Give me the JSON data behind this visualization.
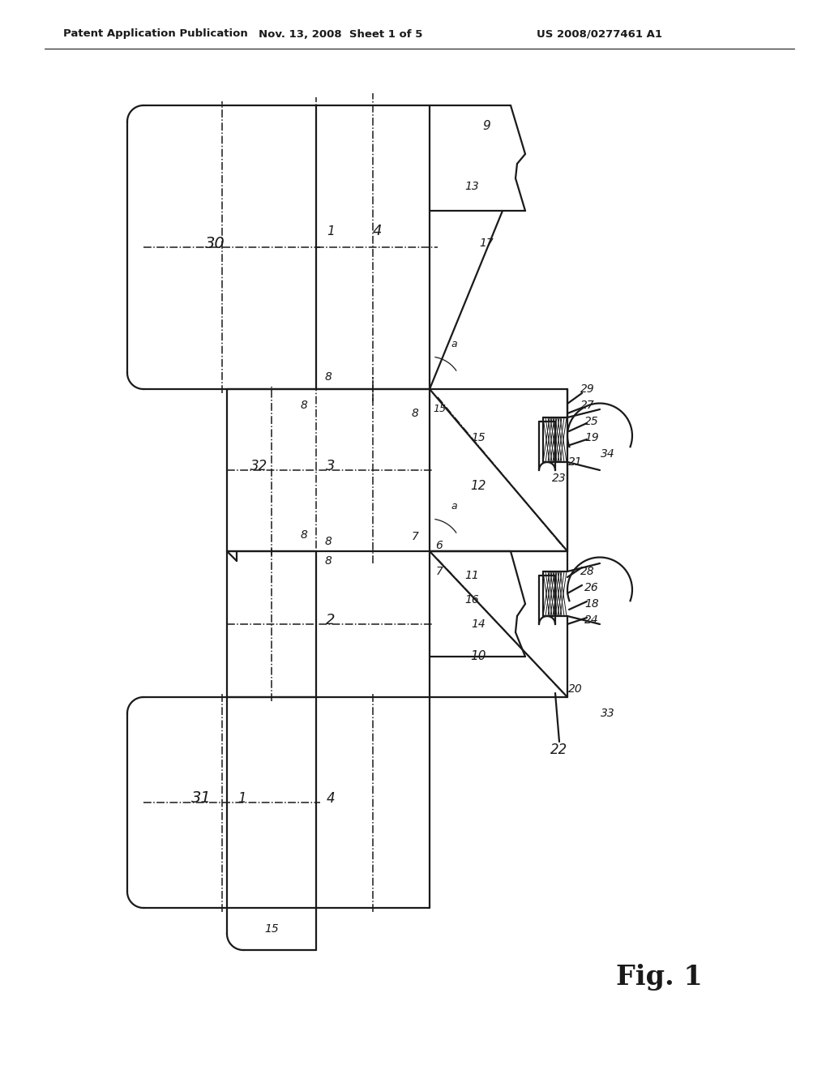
{
  "bg_color": "#ffffff",
  "header_left": "Patent Application Publication",
  "header_center": "Nov. 13, 2008  Sheet 1 of 5",
  "header_right": "US 2008/0277461 A1",
  "fig_label": "Fig. 1",
  "lc": "#1a1a1a",
  "lw": 1.6,
  "lw_thin": 0.9,
  "lw_dd": 1.1
}
